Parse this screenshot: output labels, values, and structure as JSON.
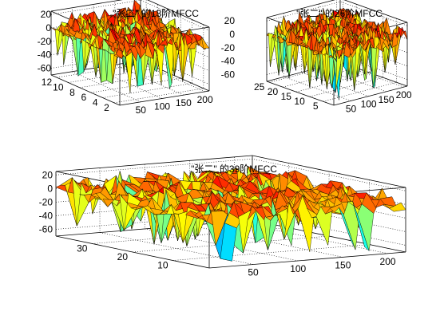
{
  "chart_data": [
    {
      "type": "surface",
      "title": "\"张二\" 的13阶MFCC",
      "xlabel": "",
      "ylabel": "",
      "zlabel": "",
      "x_ticks": [
        50,
        100,
        150,
        200
      ],
      "y_ticks": [
        2,
        4,
        6,
        8,
        10,
        12
      ],
      "z_ticks": [
        20,
        0,
        -20,
        -40,
        -60
      ],
      "xlim": [
        1,
        210
      ],
      "ylim": [
        1,
        13
      ],
      "zlim": [
        -70,
        25
      ],
      "grid": true,
      "colormap": "jet",
      "surface": {
        "rows": 13,
        "cols": 210,
        "near_zero_cols": [
          1,
          12
        ],
        "typical_range": [
          -10,
          15
        ],
        "spike_low": -65,
        "spike_high": 22
      }
    },
    {
      "type": "surface",
      "title": "\"张二\" 的26阶MFCC",
      "xlabel": "",
      "ylabel": "",
      "zlabel": "",
      "x_ticks": [
        50,
        100,
        150,
        200
      ],
      "y_ticks": [
        5,
        10,
        15,
        20,
        25
      ],
      "z_ticks": [
        20,
        0,
        -20,
        -40,
        -60
      ],
      "xlim": [
        1,
        210
      ],
      "ylim": [
        1,
        26
      ],
      "zlim": [
        -70,
        25
      ],
      "grid": true,
      "colormap": "jet",
      "surface": {
        "rows": 26,
        "cols": 210,
        "near_zero_cols": [
          1,
          12
        ],
        "typical_range": [
          -12,
          15
        ],
        "spike_low": -65,
        "spike_high": 22
      }
    },
    {
      "type": "surface",
      "title": "\"张二\" 的39阶MFCC",
      "xlabel": "",
      "ylabel": "",
      "zlabel": "",
      "x_ticks": [
        50,
        100,
        150,
        200
      ],
      "y_ticks": [
        10,
        20,
        30
      ],
      "z_ticks": [
        20,
        0,
        -20,
        -40,
        -60
      ],
      "xlim": [
        1,
        220
      ],
      "ylim": [
        1,
        39
      ],
      "zlim": [
        -70,
        25
      ],
      "grid": true,
      "colormap": "jet",
      "surface": {
        "rows": 39,
        "cols": 220,
        "near_zero_cols": [
          1,
          12
        ],
        "typical_range": [
          -15,
          15
        ],
        "spike_low": -65,
        "spike_high": 22
      }
    }
  ]
}
